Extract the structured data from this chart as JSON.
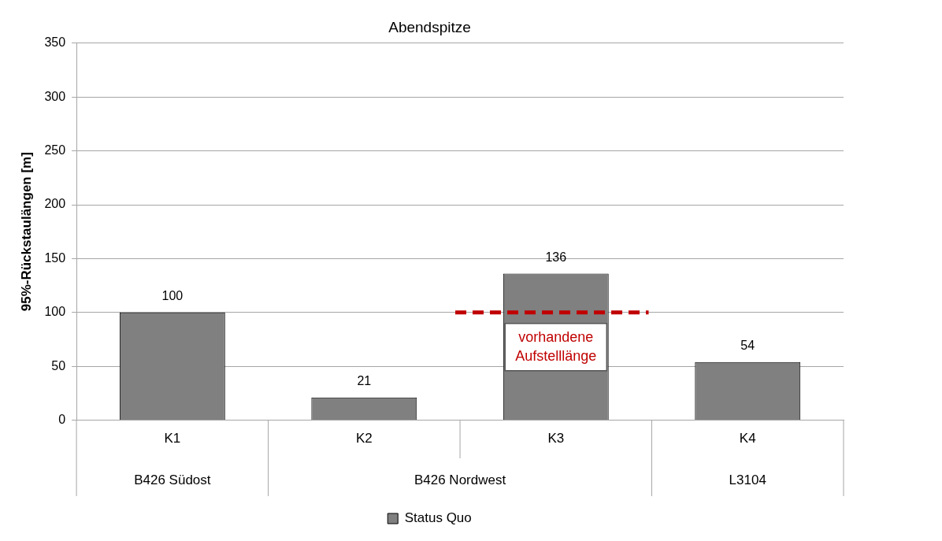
{
  "chart_data": {
    "type": "bar",
    "title": "Abendspitze",
    "ylabel": "95%-Rückstaulängen [m]",
    "categories": [
      "K1",
      "K2",
      "K3",
      "K4"
    ],
    "series": [
      {
        "name": "Status Quo",
        "color": "#808080",
        "values": [
          100,
          21,
          136,
          54
        ]
      }
    ],
    "ylim": [
      0,
      350
    ],
    "yticks": [
      0,
      50,
      100,
      150,
      200,
      250,
      300,
      350
    ],
    "grid": "y",
    "legend": "bottom",
    "data_labels": true,
    "ref_lines": [
      {
        "axis": "y",
        "value": 100,
        "color": "#c00000",
        "line_style": "dashed"
      }
    ],
    "annotations": [
      "B426 Südost",
      "B426 Nordwest",
      "L3104",
      {
        "text": "vorhandene Aufstelllänge",
        "x": "K3",
        "y": 100
      }
    ]
  }
}
